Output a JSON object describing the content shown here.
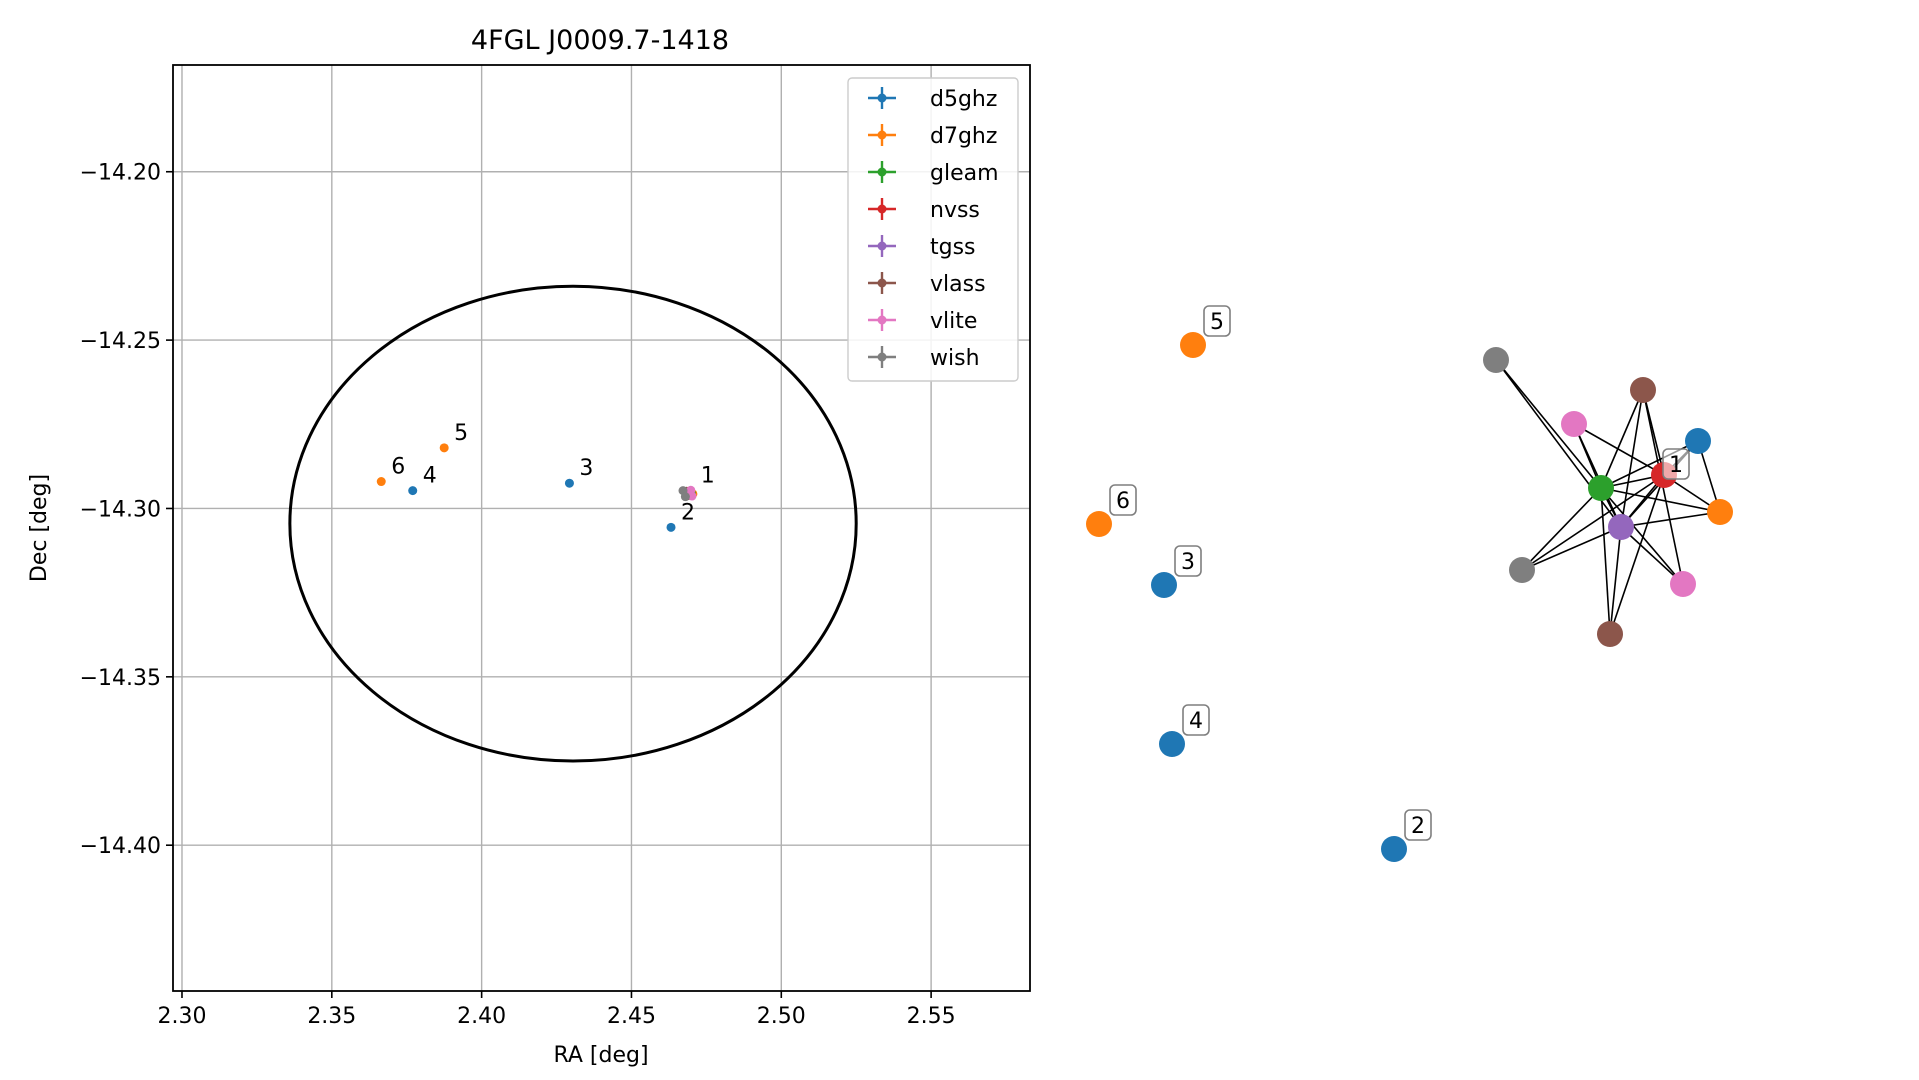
{
  "chart_data": [
    {
      "type": "scatter",
      "title": "4FGL J0009.7-1418",
      "xlabel": "RA [deg]",
      "ylabel": "Dec [deg]",
      "xlim": [
        2.297,
        2.583
      ],
      "ylim": [
        -14.4433,
        -14.1683
      ],
      "grid": true,
      "legend_position": "upper-right",
      "x_ticks": [
        2.3,
        2.35,
        2.4,
        2.45,
        2.5,
        2.55
      ],
      "x_tick_labels": [
        "2.30",
        "2.35",
        "2.40",
        "2.45",
        "2.50",
        "2.55"
      ],
      "y_ticks": [
        -14.2,
        -14.25,
        -14.3,
        -14.35,
        -14.4
      ],
      "y_tick_labels": [
        "−14.20",
        "−14.25",
        "−14.30",
        "−14.35",
        "−14.40"
      ],
      "ellipse": {
        "center": [
          2.4305,
          -14.3045
        ],
        "semi_ra": 0.0945,
        "semi_dec": 0.0705,
        "color": "#000000"
      },
      "series": [
        {
          "name": "d5ghz",
          "color": "#1f77b4",
          "points": [
            {
              "ra": 2.4695,
              "dec": -14.295,
              "label": ""
            },
            {
              "ra": 2.4632,
              "dec": -14.3056,
              "label": "2"
            },
            {
              "ra": 2.4293,
              "dec": -14.2925,
              "label": "3"
            },
            {
              "ra": 2.377,
              "dec": -14.2947,
              "label": "4"
            }
          ]
        },
        {
          "name": "d7ghz",
          "color": "#ff7f0e",
          "points": [
            {
              "ra": 2.4705,
              "dec": -14.2957,
              "label": ""
            },
            {
              "ra": 2.3875,
              "dec": -14.282,
              "label": "5"
            },
            {
              "ra": 2.3665,
              "dec": -14.292,
              "label": "6"
            }
          ]
        },
        {
          "name": "gleam",
          "color": "#2ca02c",
          "points": [
            {
              "ra": 2.47,
              "dec": -14.2955,
              "label": ""
            }
          ]
        },
        {
          "name": "nvss",
          "color": "#d62728",
          "points": [
            {
              "ra": 2.4692,
              "dec": -14.2952,
              "label": ""
            }
          ]
        },
        {
          "name": "tgss",
          "color": "#9467bd",
          "points": [
            {
              "ra": 2.469,
              "dec": -14.2958,
              "label": ""
            }
          ]
        },
        {
          "name": "vlass",
          "color": "#8c564b",
          "points": [
            {
              "ra": 2.4684,
              "dec": -14.2949,
              "label": ""
            },
            {
              "ra": 2.4688,
              "dec": -14.2962,
              "label": ""
            }
          ]
        },
        {
          "name": "vlite",
          "color": "#e377c2",
          "points": [
            {
              "ra": 2.4698,
              "dec": -14.2946,
              "label": "1"
            },
            {
              "ra": 2.4702,
              "dec": -14.2963,
              "label": ""
            }
          ]
        },
        {
          "name": "wish",
          "color": "#7f7f7f",
          "points": [
            {
              "ra": 2.4672,
              "dec": -14.2947,
              "label": ""
            },
            {
              "ra": 2.468,
              "dec": -14.2965,
              "label": ""
            }
          ]
        }
      ]
    },
    {
      "type": "network",
      "title": "",
      "nodes": [
        {
          "id": "n5",
          "color": "#ff7f0e",
          "label": "5"
        },
        {
          "id": "n6",
          "color": "#ff7f0e",
          "label": "6"
        },
        {
          "id": "n3",
          "color": "#1f77b4",
          "label": "3"
        },
        {
          "id": "n4",
          "color": "#1f77b4",
          "label": "4"
        },
        {
          "id": "n2",
          "color": "#1f77b4",
          "label": "2"
        },
        {
          "id": "wishA",
          "color": "#7f7f7f",
          "label": ""
        },
        {
          "id": "vlassA",
          "color": "#8c564b",
          "label": ""
        },
        {
          "id": "vliteA",
          "color": "#e377c2",
          "label": ""
        },
        {
          "id": "d5A",
          "color": "#1f77b4",
          "label": ""
        },
        {
          "id": "gleam",
          "color": "#2ca02c",
          "label": ""
        },
        {
          "id": "nvss",
          "color": "#d62728",
          "label": "1"
        },
        {
          "id": "d7A",
          "color": "#ff7f0e",
          "label": ""
        },
        {
          "id": "tgss",
          "color": "#9467bd",
          "label": ""
        },
        {
          "id": "wishB",
          "color": "#7f7f7f",
          "label": ""
        },
        {
          "id": "vliteB",
          "color": "#e377c2",
          "label": ""
        },
        {
          "id": "vlassB",
          "color": "#8c564b",
          "label": ""
        }
      ],
      "edges": [
        [
          "wishA",
          "gleam"
        ],
        [
          "wishA",
          "tgss"
        ],
        [
          "vlassA",
          "gleam"
        ],
        [
          "vlassA",
          "tgss"
        ],
        [
          "vlassA",
          "nvss"
        ],
        [
          "vlassA",
          "vliteB"
        ],
        [
          "vliteA",
          "gleam"
        ],
        [
          "vliteA",
          "tgss"
        ],
        [
          "vliteA",
          "nvss"
        ],
        [
          "d5A",
          "gleam"
        ],
        [
          "d5A",
          "tgss"
        ],
        [
          "d5A",
          "nvss"
        ],
        [
          "d5A",
          "d7A"
        ],
        [
          "gleam",
          "nvss"
        ],
        [
          "gleam",
          "tgss"
        ],
        [
          "gleam",
          "d7A"
        ],
        [
          "gleam",
          "wishB"
        ],
        [
          "gleam",
          "vliteB"
        ],
        [
          "gleam",
          "vlassB"
        ],
        [
          "nvss",
          "tgss"
        ],
        [
          "nvss",
          "d7A"
        ],
        [
          "nvss",
          "wishB"
        ],
        [
          "nvss",
          "vlassB"
        ],
        [
          "tgss",
          "d7A"
        ],
        [
          "tgss",
          "wishB"
        ],
        [
          "tgss",
          "vliteB"
        ],
        [
          "tgss",
          "vlassB"
        ]
      ]
    }
  ]
}
